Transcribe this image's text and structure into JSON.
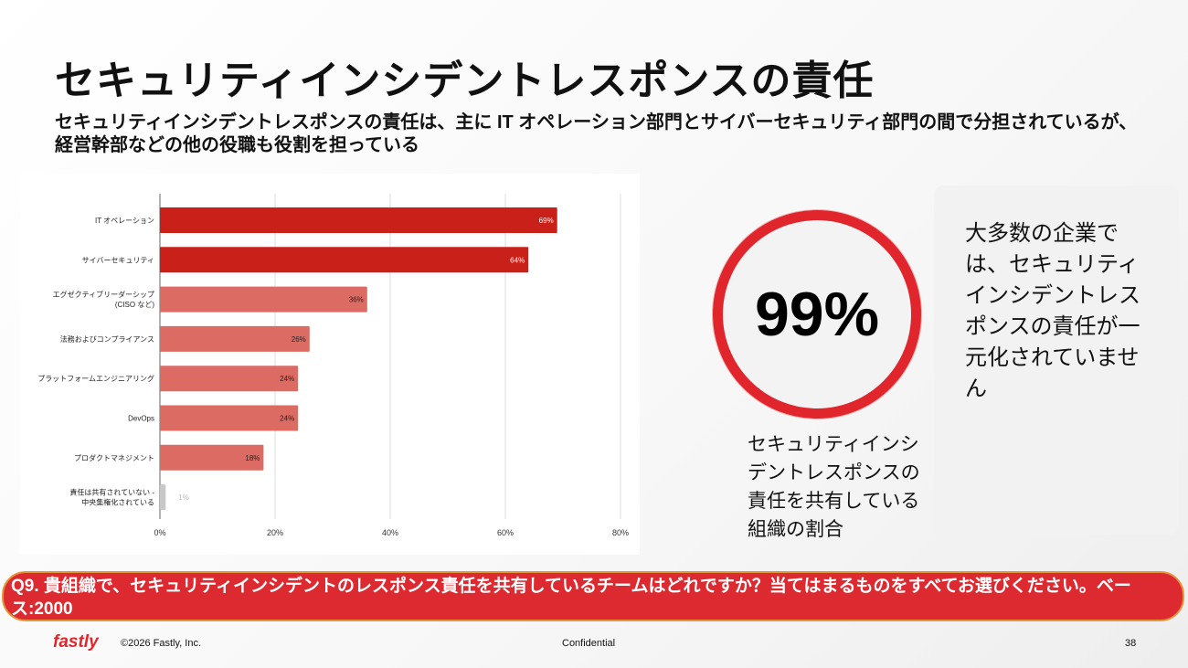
{
  "title": "セキュリティインシデントレスポンスの責任",
  "subtitle": "セキュリティインシデントレスポンスの責任は、主に IT オペレーション部門とサイバーセキュリティ部門の間で分担されているが、経営幹部などの他の役職も役割を担っている",
  "chart_data": {
    "type": "bar",
    "orientation": "horizontal",
    "categories": [
      "IT オペレーション",
      "サイバーセキュリティ",
      "エグゼクティブリーダーシップ (CISO など)",
      "法務およびコンプライアンス",
      "プラットフォームエンジニアリング",
      "DevOps",
      "プロダクトマネジメント",
      "責任は共有されていない - 中央集権化されている"
    ],
    "category_lines": [
      [
        "IT オペレーション"
      ],
      [
        "サイバーセキュリティ"
      ],
      [
        "エグゼクティブリーダーシップ",
        "(CISO など)"
      ],
      [
        "法務およびコンプライアンス"
      ],
      [
        "プラットフォームエンジニアリング"
      ],
      [
        "DevOps"
      ],
      [
        "プロダクトマネジメント"
      ],
      [
        "責任は共有されていない -",
        "中央集権化されている"
      ]
    ],
    "values": [
      69,
      64,
      36,
      26,
      24,
      24,
      18,
      1
    ],
    "value_labels": [
      "69%",
      "64%",
      "36%",
      "26%",
      "24%",
      "24%",
      "18%",
      "1%"
    ],
    "colors": [
      "#c9201a",
      "#c9201a",
      "#dc6b63",
      "#dc6b63",
      "#dc6b63",
      "#dc6b63",
      "#dc6b63",
      "#c8c8c8"
    ],
    "xlim": [
      0,
      80
    ],
    "xticks": [
      "0%",
      "20%",
      "40%",
      "60%",
      "80%"
    ],
    "grid": true
  },
  "highlight": {
    "value": "99%",
    "caption": "セキュリティインシデントレスポンスの責任を共有している組織の割合"
  },
  "card": {
    "text": "大多数の企業では、セキュリティインシデントレスポンスの責任が一元化されていません"
  },
  "question": "Q9. 貴組織で、セキュリティインシデントのレスポンス責任を共有しているチームはどれですか？当てはまるものをすべてお選びください。ベース:2000",
  "footer": {
    "logo": "fastly",
    "copyright": "©2026 Fastly, Inc.",
    "confidential": "Confidential",
    "page": "38"
  }
}
